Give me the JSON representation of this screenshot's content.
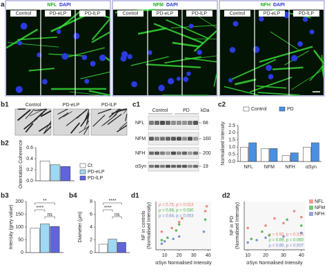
{
  "panels": {
    "a": {
      "label": "a",
      "groups": [
        {
          "title": "NFL",
          "stain": "DAPI",
          "columns": [
            "Control",
            "PD-eLP",
            "PD-lLP"
          ]
        },
        {
          "title": "NFM",
          "stain": "DAPI",
          "columns": [
            "Control",
            "PD-eLP",
            "PD-lLP"
          ]
        },
        {
          "title": "NFH",
          "stain": "DAPI",
          "columns": [
            "Control",
            "PD-eLP",
            "PD-lLP"
          ]
        }
      ]
    },
    "b1": {
      "label": "b1",
      "columns": [
        "Control",
        "PD-eLP",
        "PD-lLP"
      ]
    },
    "c1": {
      "label": "c1",
      "groups": [
        "Control",
        "PD"
      ],
      "rows": [
        "NFL",
        "NFM",
        "NFH",
        "αSyn"
      ],
      "unit": "kDa",
      "markers": [
        68,
        160,
        200,
        19
      ]
    }
  },
  "chart_data": [
    {
      "type": "bar",
      "panel": "b2",
      "ylabel": "Orientation Coherence",
      "categories": [
        null
      ],
      "series": [
        {
          "name": "Ct",
          "color": "#ffffff",
          "values": [
            0.36
          ]
        },
        {
          "name": "PD-eLP",
          "color": "#9fd8f2",
          "values": [
            0.29
          ]
        },
        {
          "name": "PD-lLP",
          "color": "#6065dc",
          "values": [
            0.26
          ]
        }
      ],
      "ylim": [
        0,
        0.6
      ],
      "yticks": [
        {
          "value": 0,
          "label": "0.0"
        },
        0.2,
        0.4,
        0.6
      ],
      "legend": "right"
    },
    {
      "type": "bar",
      "panel": "b3",
      "ylabel": "Intensity (grey value)",
      "categories": [
        null
      ],
      "series": [
        {
          "color": "#ffffff",
          "values": [
            95
          ]
        },
        {
          "color": "#9fd8f2",
          "values": [
            112
          ]
        },
        {
          "color": "#6065dc",
          "values": [
            102
          ]
        }
      ],
      "ylim": [
        0,
        200
      ],
      "yticks": [
        0,
        50,
        100,
        150,
        200
      ],
      "annotations": [
        "****",
        "**",
        "ns"
      ]
    },
    {
      "type": "bar",
      "panel": "b4",
      "ylabel": "Diameter (μm)",
      "categories": [
        null
      ],
      "series": [
        {
          "color": "#ffffff",
          "values": [
            1.3
          ]
        },
        {
          "color": "#9fd8f2",
          "values": [
            2.1
          ]
        },
        {
          "color": "#6065dc",
          "values": [
            1.6
          ]
        }
      ],
      "ylim": [
        0,
        8
      ],
      "yticks": [
        0,
        2,
        4,
        6,
        8
      ],
      "annotations": [
        "****",
        "****",
        "ns"
      ]
    },
    {
      "type": "bar",
      "panel": "c2",
      "ylabel": "Normalised Intensity",
      "categories": [
        "NFL",
        "NFM",
        "NFH",
        "αSyn"
      ],
      "series": [
        {
          "name": "Control",
          "color": "#ffffff",
          "values": [
            1.0,
            0.9,
            0.4,
            1.0
          ]
        },
        {
          "name": "PD",
          "color": "#4a90e2",
          "values": [
            1.3,
            0.9,
            0.6,
            1.3
          ]
        }
      ],
      "ylim": [
        0,
        2.5
      ],
      "yticks": [
        {
          "value": 0,
          "label": "0.0"
        },
        0.5,
        {
          "value": 1,
          "label": "1.0"
        },
        1.5,
        {
          "value": 2,
          "label": "2.0"
        },
        2.5
      ],
      "legend": "top"
    },
    {
      "type": "scatter",
      "panel": "d1",
      "ylabel": [
        "NF in controls",
        "(Normalised Intensity)"
      ],
      "xlabel": "αSyn Normalised Intensity",
      "xlim": [
        4,
        42
      ],
      "xticks": [
        10,
        20,
        30,
        40
      ],
      "ylim": [
        0,
        4
      ],
      "series": [
        {
          "name": "NFL",
          "color": "#e8756a",
          "stats": "ρ = 0.75, p = 0.013",
          "x": [
            8,
            15,
            20,
            22,
            38,
            39
          ],
          "y": [
            1.5,
            1.8,
            2.3,
            2.6,
            3.2,
            3.6
          ]
        },
        {
          "name": "NFM",
          "color": "#3fae3f",
          "stats": "ρ = 0.68, p = 0.030",
          "x": [
            8,
            12,
            18,
            20,
            38
          ],
          "y": [
            0.8,
            1.0,
            1.6,
            2.1,
            2.5
          ]
        },
        {
          "name": "NFH",
          "color": "#6b7fc6",
          "stats": "ρ = 0.64, p = 0.003",
          "x": [
            8,
            10,
            16,
            20,
            37
          ],
          "y": [
            0.5,
            0.7,
            0.9,
            1.1,
            1.5
          ]
        }
      ]
    },
    {
      "type": "scatter",
      "panel": "d2",
      "ylabel": [
        "NF in PD",
        "(Normalised Intensity)"
      ],
      "xlabel": "αSyn Normalised Intensity",
      "xlim": [
        8,
        42
      ],
      "xticks": [
        10,
        20,
        30,
        40
      ],
      "ylim": [
        0,
        4
      ],
      "legend": "right",
      "series": [
        {
          "name": "NFL",
          "color": "#e8756a",
          "stats": "ρ = 0.50, p = 0.316",
          "x": [
            10,
            20,
            25,
            30,
            36,
            40
          ],
          "y": [
            1.8,
            2.0,
            2.6,
            2.2,
            3.2,
            2.7
          ]
        },
        {
          "name": "NFM",
          "color": "#3fae3f",
          "stats": "ρ = 0.69, p = 0.060",
          "x": [
            12,
            18,
            22,
            32,
            40
          ],
          "y": [
            0.9,
            1.5,
            1.2,
            2.5,
            2.0
          ]
        },
        {
          "name": "NFH",
          "color": "#6b7fc6",
          "stats": "ρ = 0.85, p = 0.007",
          "x": [
            10,
            15,
            20,
            30,
            40
          ],
          "y": [
            0.6,
            0.8,
            1.0,
            1.1,
            1.4
          ]
        }
      ]
    }
  ]
}
